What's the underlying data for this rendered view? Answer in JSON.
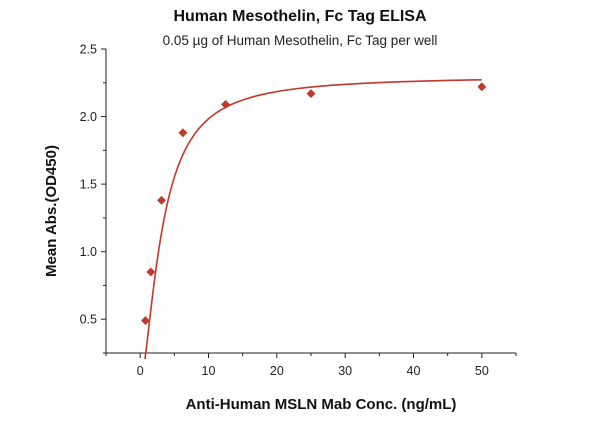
{
  "chart_data": {
    "type": "scatter",
    "title": "Human Mesothelin, Fc Tag ELISA",
    "subtitle": "0.05 µg of Human Mesothelin, Fc Tag per well",
    "xlabel": "Anti-Human MSLN Mab Conc. (ng/mL)",
    "ylabel": "Mean Abs.(OD450)",
    "xlim": [
      -5,
      55
    ],
    "ylim": [
      0.25,
      2.5
    ],
    "x_ticks": [
      0,
      10,
      20,
      30,
      40,
      50
    ],
    "y_ticks": [
      0.5,
      1.0,
      1.5,
      2.0,
      2.5
    ],
    "x_tick_labels": [
      "0",
      "10",
      "20",
      "30",
      "40",
      "50"
    ],
    "y_tick_labels": [
      "0.5",
      "1.0",
      "1.5",
      "2.0",
      "2.5"
    ],
    "grid": false,
    "colors": {
      "series": "#c0392b"
    },
    "series": [
      {
        "marker": "diamond",
        "fit": "4-parameter logistic curve",
        "x": [
          0.78,
          1.56,
          3.13,
          6.25,
          12.5,
          25,
          50
        ],
        "y": [
          0.49,
          0.85,
          1.38,
          1.88,
          2.09,
          2.17,
          2.22
        ]
      }
    ]
  }
}
